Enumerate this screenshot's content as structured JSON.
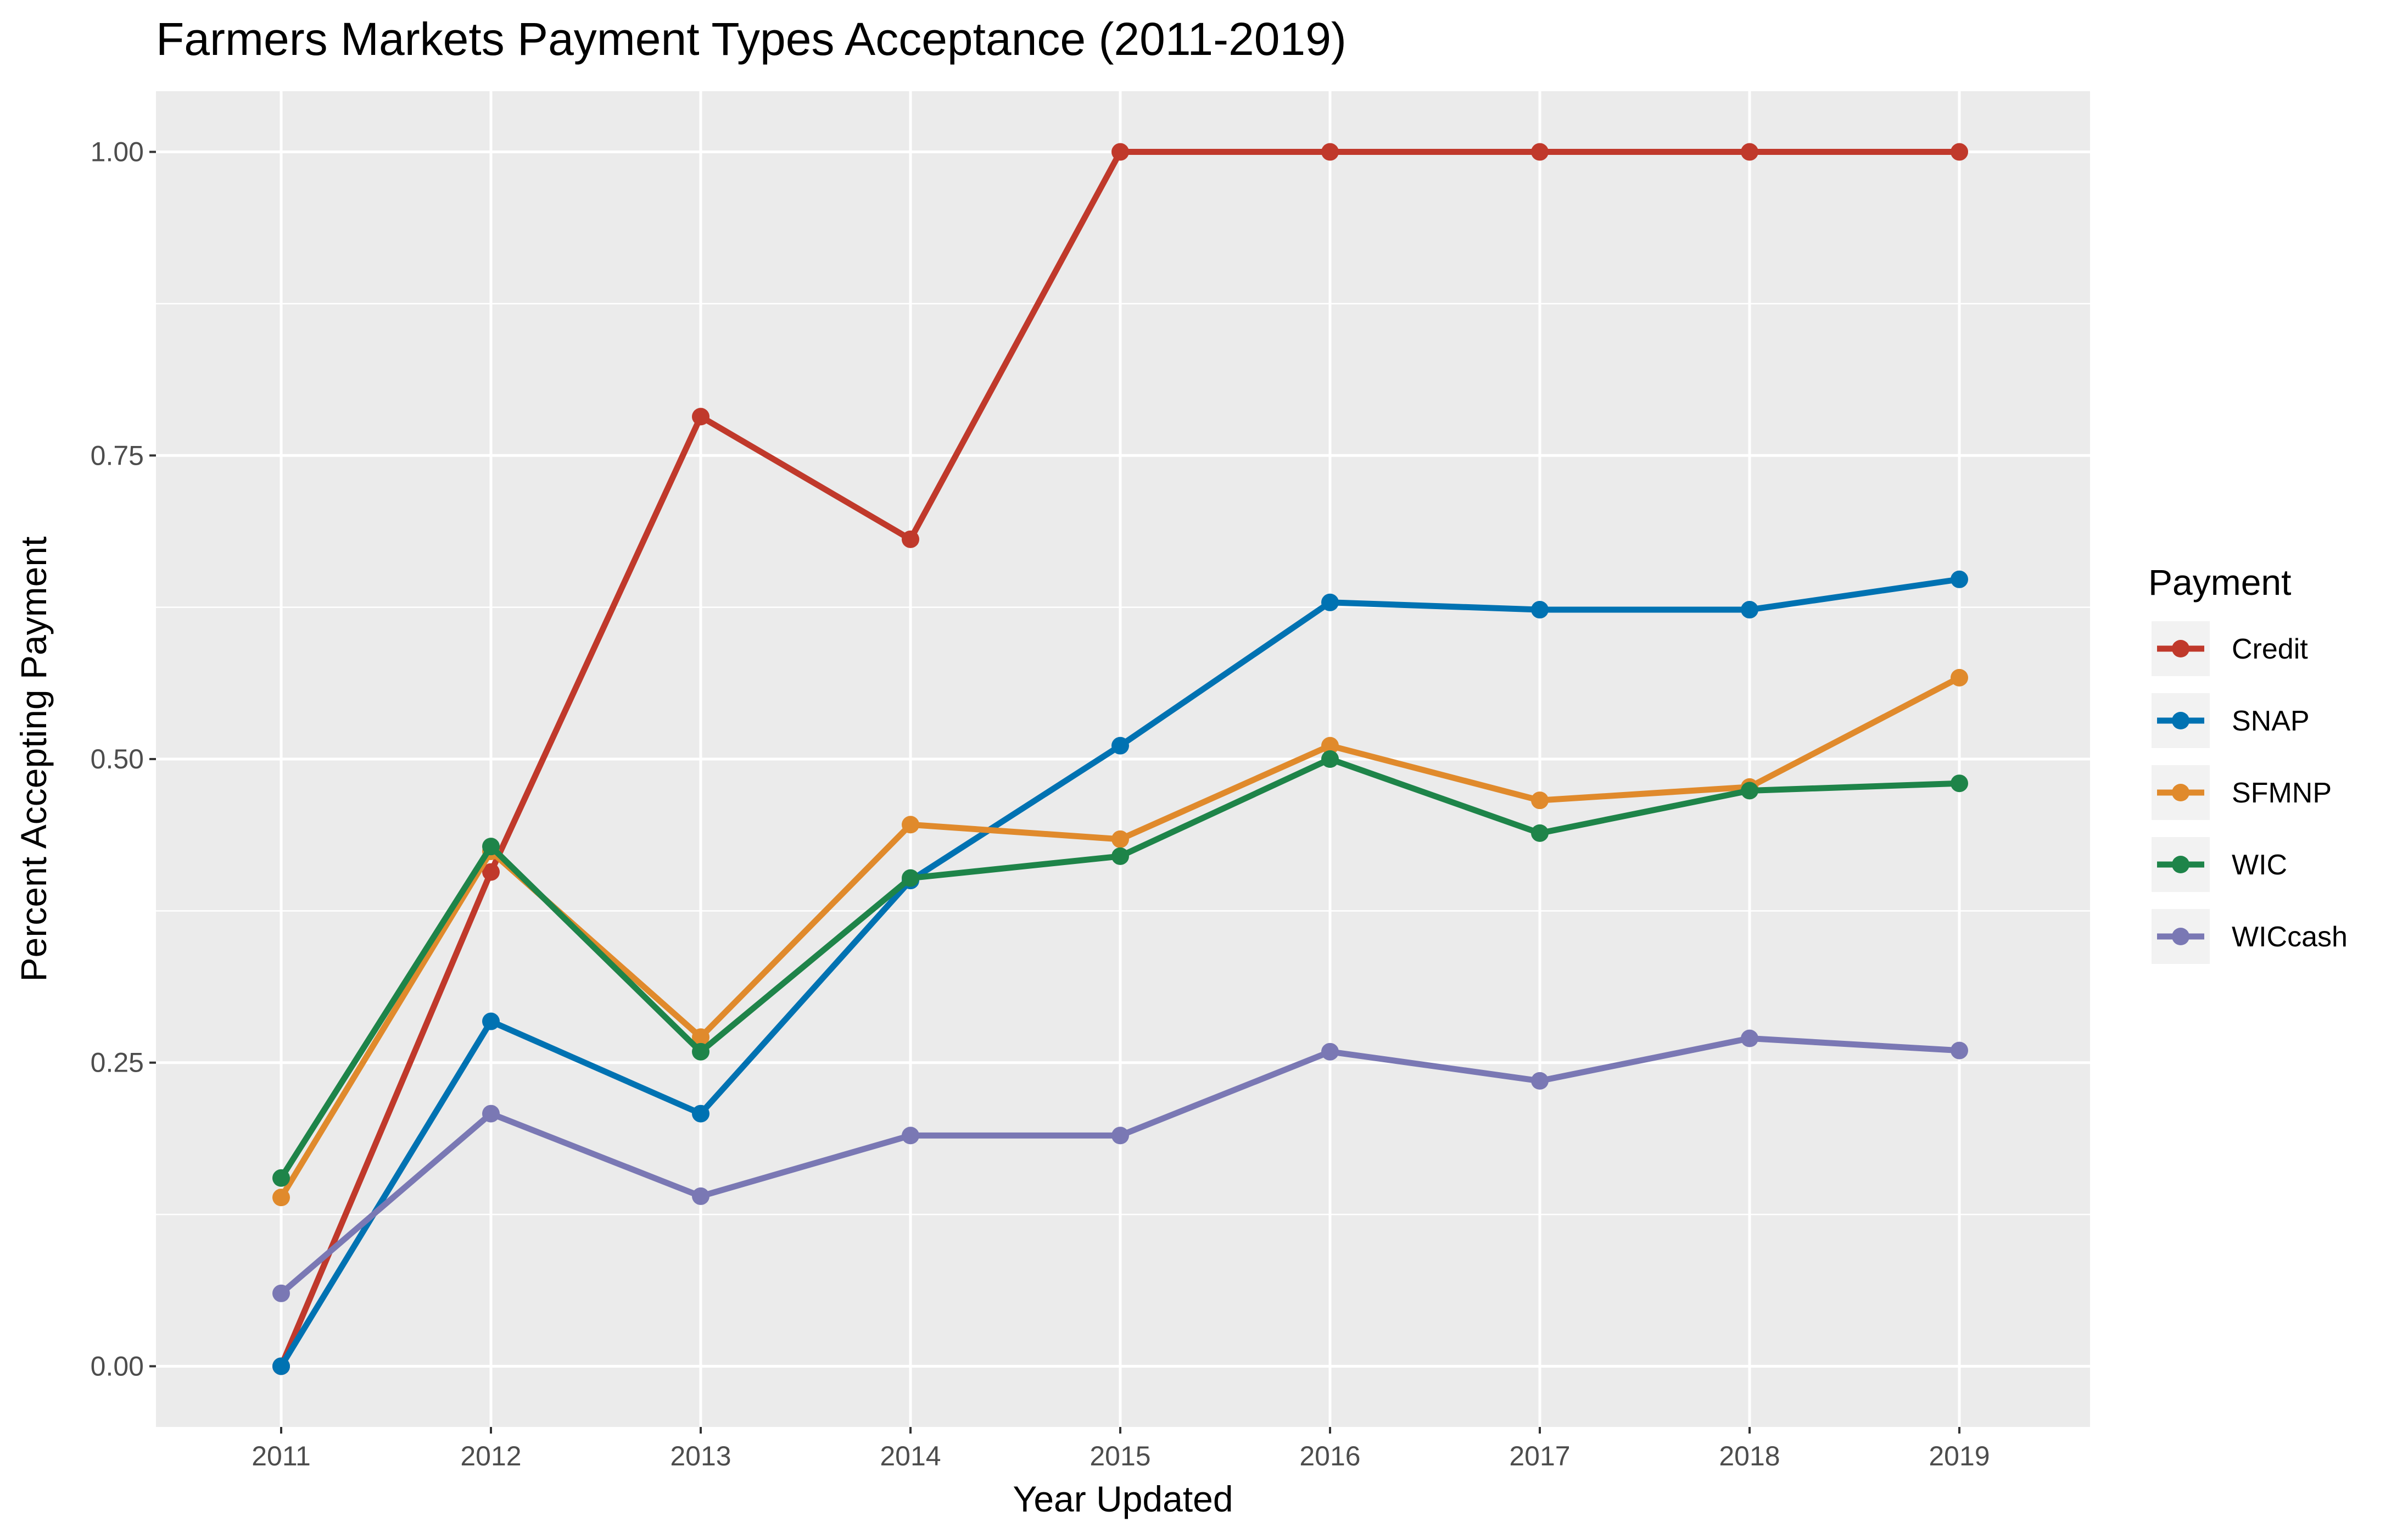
{
  "chart_data": {
    "type": "line",
    "title": "Farmers Markets Payment Types Acceptance (2011-2019)",
    "xlabel": "Year Updated",
    "ylabel": "Percent Accepting Payment",
    "categories": [
      "2011",
      "2012",
      "2013",
      "2014",
      "2015",
      "2016",
      "2017",
      "2018",
      "2019"
    ],
    "y_ticks": [
      "0.00",
      "0.25",
      "0.50",
      "0.75",
      "1.00"
    ],
    "ylim": [
      -0.05,
      1.05
    ],
    "grid": true,
    "legend": {
      "title": "Payment",
      "position": "right"
    },
    "series": [
      {
        "name": "Credit",
        "color": "#C0392B",
        "values": [
          0.0,
          0.407,
          0.782,
          0.681,
          1.0,
          1.0,
          1.0,
          1.0,
          1.0
        ]
      },
      {
        "name": "SNAP",
        "color": "#0072B2",
        "values": [
          0.0,
          0.284,
          0.208,
          0.4,
          0.511,
          0.629,
          0.623,
          0.623,
          0.648
        ]
      },
      {
        "name": "SFMNP",
        "color": "#E08A2C",
        "values": [
          0.139,
          0.424,
          0.271,
          0.446,
          0.434,
          0.511,
          0.466,
          0.477,
          0.567
        ]
      },
      {
        "name": "WIC",
        "color": "#1E8449",
        "values": [
          0.155,
          0.428,
          0.259,
          0.402,
          0.42,
          0.5,
          0.439,
          0.474,
          0.48
        ]
      },
      {
        "name": "WICcash",
        "color": "#7A78B4",
        "values": [
          0.06,
          0.208,
          0.14,
          0.19,
          0.19,
          0.259,
          0.235,
          0.27,
          0.26
        ]
      }
    ]
  }
}
